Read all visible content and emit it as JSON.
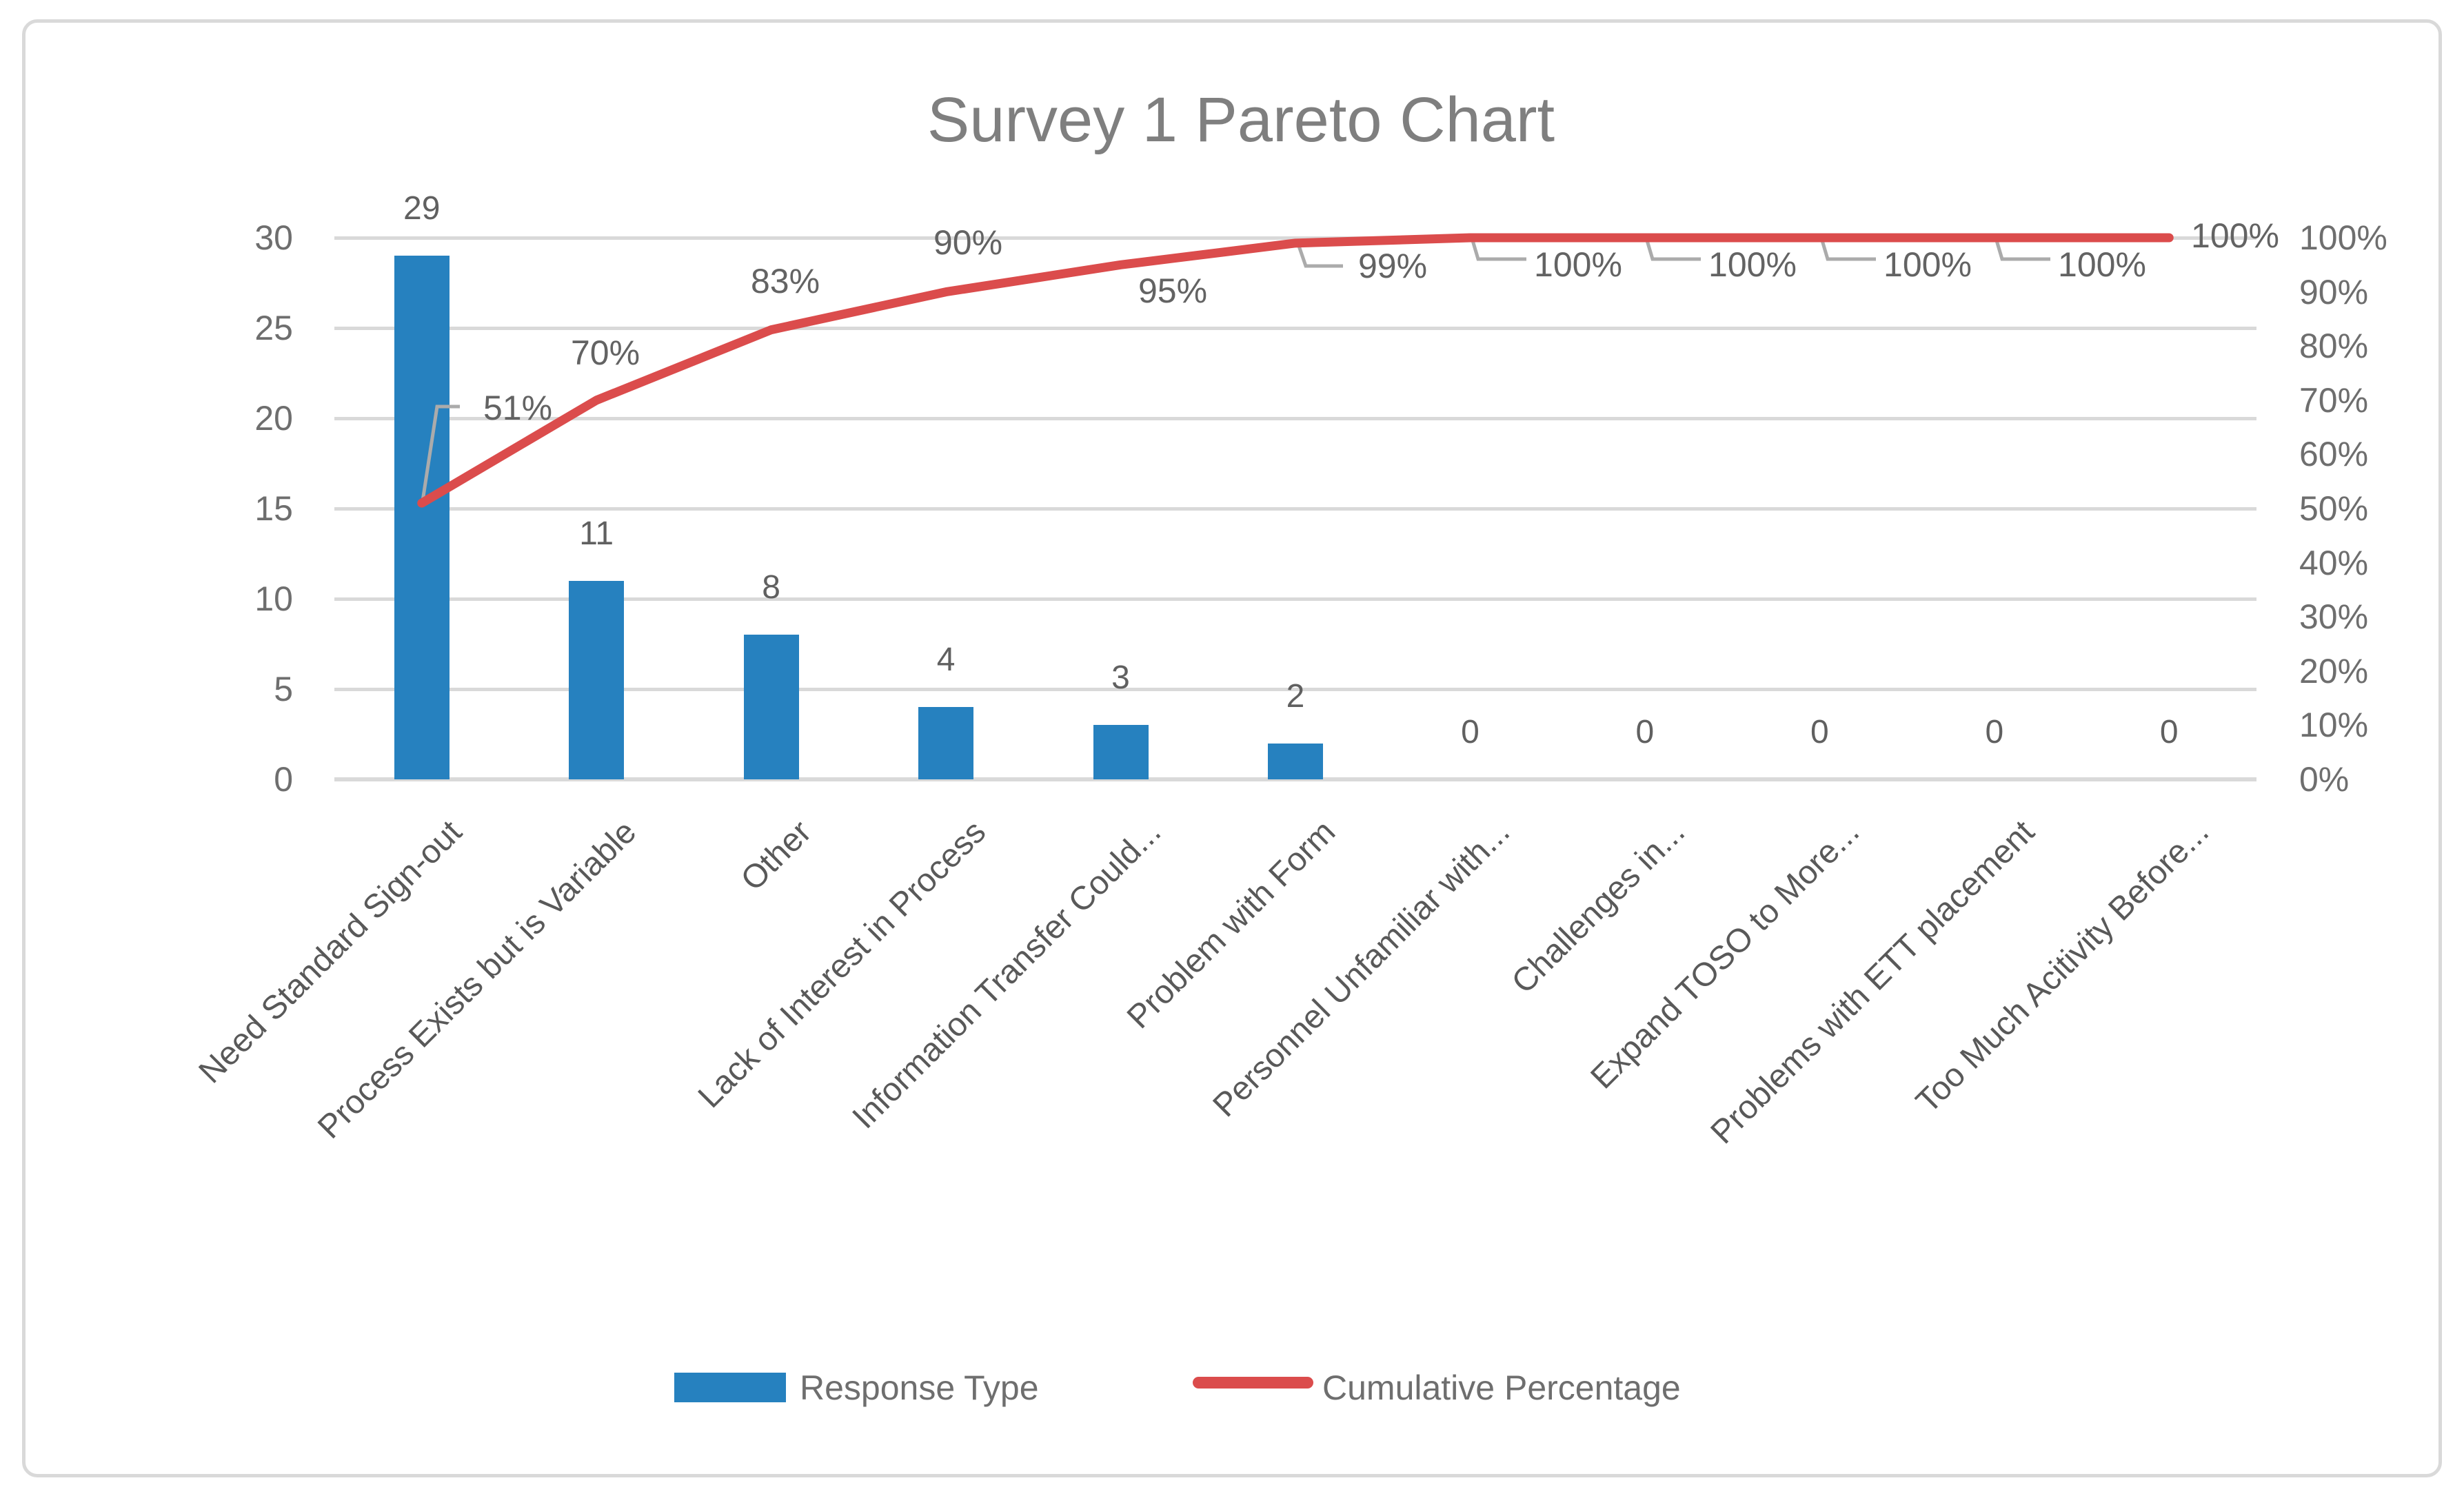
{
  "title": "Survey 1 Pareto Chart",
  "chart_data": {
    "type": "bar",
    "subtype": "pareto-combo-bar-line",
    "title": "Survey 1 Pareto Chart",
    "categories": [
      "Need Standard Sign-out",
      "Process Exists but is Variable",
      "Other",
      "Lack of Interest in Process",
      "Information Transfer Could...",
      "Problem with Form",
      "Personnel Unfamiliar with...",
      "Challenges in...",
      "Expand TOSO to More...",
      "Problems with ETT placement",
      "Too Much Acitivity Before..."
    ],
    "series": [
      {
        "name": "Response Type",
        "type": "bar",
        "color": "#2681BF",
        "values": [
          29,
          11,
          8,
          4,
          3,
          2,
          0,
          0,
          0,
          0,
          0
        ],
        "data_labels": [
          "29",
          "11",
          "8",
          "4",
          "3",
          "2",
          "0",
          "0",
          "0",
          "0",
          "0"
        ]
      },
      {
        "name": "Cumulative Percentage",
        "type": "line",
        "color": "#DB4C4C",
        "values_pct": [
          51,
          70,
          83,
          90,
          95,
          99,
          100,
          100,
          100,
          100,
          100
        ],
        "data_labels": [
          "51%",
          "70%",
          "83%",
          "90%",
          "95%",
          "99%",
          "100%",
          "100%",
          "100%",
          "100%",
          "100%"
        ]
      }
    ],
    "left_axis": {
      "min": 0,
      "max": 30,
      "ticks": [
        "30",
        "25",
        "20",
        "15",
        "10",
        "5",
        "0"
      ]
    },
    "right_axis": {
      "min_label": "0%",
      "max_label": "100%",
      "ticks": [
        "100%",
        "90%",
        "80%",
        "70%",
        "60%",
        "50%",
        "40%",
        "30%",
        "20%",
        "10%",
        "0%"
      ]
    },
    "legend": [
      {
        "label": "Response Type",
        "color": "#2681BF"
      },
      {
        "label": "Cumulative Percentage",
        "color": "#DB4C4C"
      }
    ],
    "grid": "horizontal-on",
    "legend_position": "bottom",
    "colors": {
      "bar": "#2681BF",
      "line": "#DB4C4C",
      "gridline": "#D9D9D9",
      "border": "#D9D9D9",
      "title_text": "#7F7F7F",
      "axis_text": "#6E6E6E",
      "data_label_text": "#636363",
      "category_text": "#595959",
      "leader_line": "#ABABAB"
    }
  }
}
